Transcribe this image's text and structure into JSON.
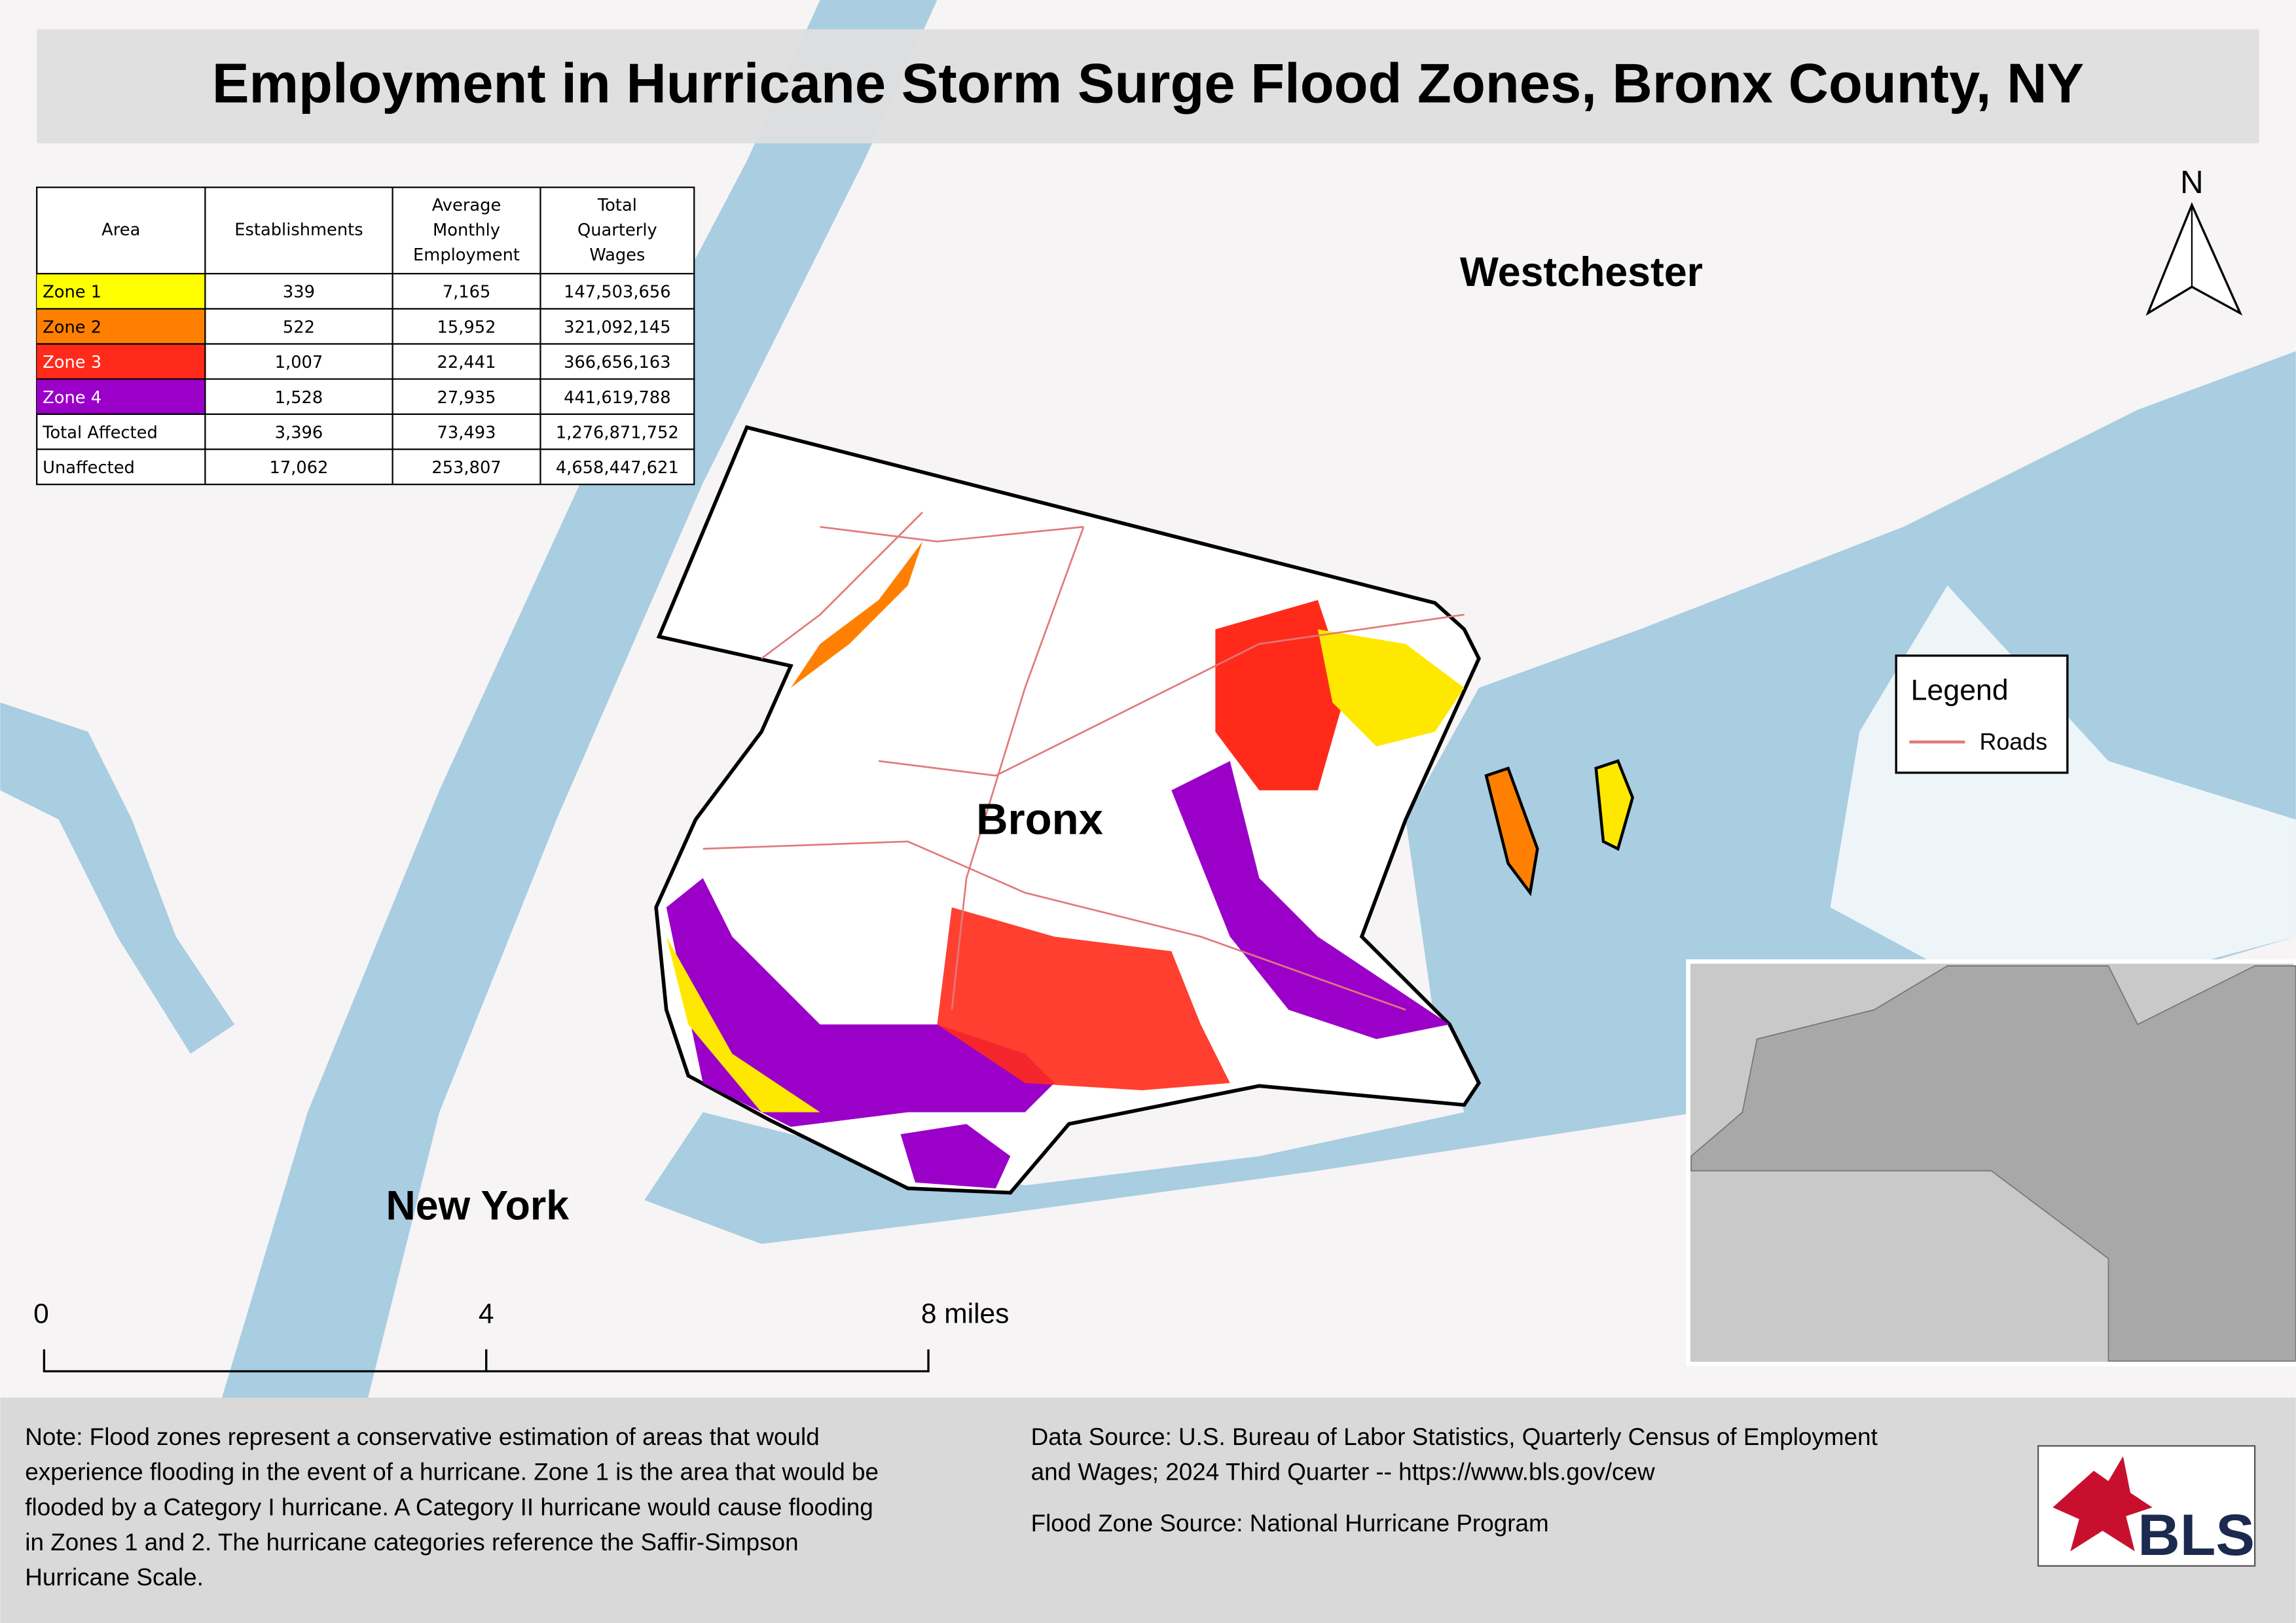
{
  "header": {
    "title": "Employment in Hurricane Storm Surge Flood Zones, Bronx County, NY"
  },
  "table": {
    "columns": [
      "Area",
      "Establishments",
      "Average Monthly Employment",
      "Total Quarterly Wages"
    ],
    "rows": [
      [
        "Zone 1",
        "339",
        "7,165",
        "147,503,656"
      ],
      [
        "Zone 2",
        "522",
        "15,952",
        "321,092,145"
      ],
      [
        "Zone 3",
        "1,007",
        "22,441",
        "366,656,163"
      ],
      [
        "Zone 4",
        "1,528",
        "27,935",
        "441,619,788"
      ],
      [
        "Total Affected",
        "3,396",
        "73,493",
        "1,276,871,752"
      ],
      [
        "Unaffected",
        "17,062",
        "253,807",
        "4,658,447,621"
      ]
    ]
  },
  "places": [
    "Westchester",
    "Bronx",
    "New York"
  ],
  "legend": {
    "title": "Legend",
    "items": [
      "Roads"
    ]
  },
  "north_arrow": "N",
  "scale_bar": [
    "0",
    "4",
    "8 miles"
  ],
  "note": [
    "Note: Flood zones represent a conservative estimation of areas that would",
    "experience flooding in the event of a hurricane. Zone 1 is the area that would be",
    "flooded by a Category I hurricane. A Category II hurricane would cause flooding",
    "in Zones 1 and 2. The hurricane categories reference the Saffir-Simpson",
    "Hurricane Scale."
  ],
  "sources": [
    "Data Source: U.S. Bureau of Labor Statistics, Quarterly Census of Employment",
    "and Wages; 2024 Third Quarter -- https://www.bls.gov/cew",
    "Flood Zone Source: National Hurricane Program"
  ],
  "logo": "BLS"
}
